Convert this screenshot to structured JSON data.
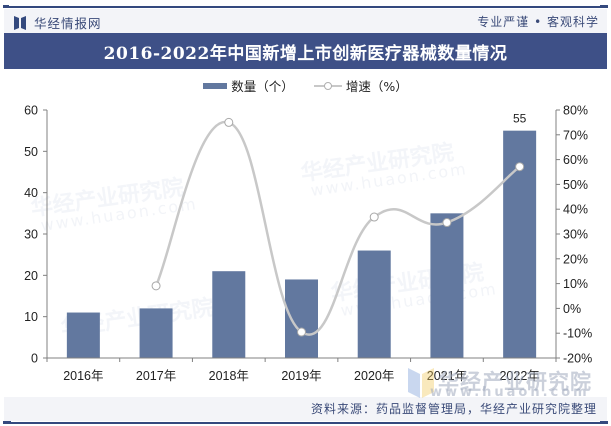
{
  "header": {
    "brand_name": "华经情报网",
    "slogan": "专业严谨 • 客观科学"
  },
  "title": "2016-2022年中国新增上市创新医疗器械数量情况",
  "legend": {
    "bar_label": "数量（个）",
    "line_label": "增速（%）"
  },
  "source": "资料来源：药品监督管理局，华经产业研究院整理",
  "watermark": {
    "text": "华经产业研究院",
    "url": "www.huaon.com"
  },
  "colors": {
    "bar": "#62789f",
    "line": "#c8c8c8",
    "title_bg": "#3e5087",
    "header_bg": "#f3f4f8",
    "accent": "#34497e"
  },
  "chart_data": {
    "type": "bar+line",
    "title": "2016-2022年中国新增上市创新医疗器械数量情况",
    "categories": [
      "2016年",
      "2017年",
      "2018年",
      "2019年",
      "2020年",
      "2021年",
      "2022年"
    ],
    "series": [
      {
        "name": "数量（个）",
        "type": "bar",
        "axis": "left",
        "values": [
          11,
          12,
          21,
          19,
          26,
          35,
          55
        ],
        "data_labels": [
          null,
          null,
          null,
          null,
          null,
          null,
          "55"
        ]
      },
      {
        "name": "增速（%）",
        "type": "line",
        "axis": "right",
        "smooth": true,
        "values": [
          null,
          9.09,
          75.0,
          -9.52,
          36.84,
          34.62,
          57.14
        ]
      }
    ],
    "y_left": {
      "range": [
        0,
        60
      ],
      "ticks": [
        "0",
        "10",
        "20",
        "30",
        "40",
        "50",
        "60"
      ]
    },
    "y_right": {
      "range": [
        -20,
        80
      ],
      "ticks": [
        "-20%",
        "-10%",
        "0%",
        "10%",
        "20%",
        "30%",
        "40%",
        "50%",
        "60%",
        "70%",
        "80%"
      ]
    },
    "xlabel": "",
    "ylabel": "",
    "grid": false,
    "legend_position": "top"
  }
}
